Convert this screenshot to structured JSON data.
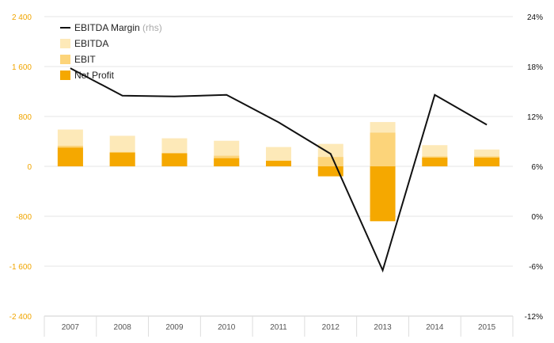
{
  "colors": {
    "ebitda": "#fde9b8",
    "ebit": "#fcd47a",
    "net_profit": "#f5a800",
    "margin_line": "#111111",
    "left_axis_text": "#f0a500",
    "right_axis_text": "#111111",
    "x_axis_text": "#555555",
    "grid": "#e6e6e6",
    "legend_text": "#222222",
    "legend_hint": "#aaaaaa"
  },
  "legend": [
    {
      "key": "margin",
      "label": "EBITDA Margin",
      "hint": "(rhs)",
      "type": "line"
    },
    {
      "key": "ebitda",
      "label": "EBITDA",
      "type": "box"
    },
    {
      "key": "ebit",
      "label": "EBIT",
      "type": "box"
    },
    {
      "key": "net_profit",
      "label": "Net Profit",
      "type": "box"
    }
  ],
  "chart_data": {
    "type": "bar",
    "categories": [
      "2007",
      "2008",
      "2009",
      "2010",
      "2011",
      "2012",
      "2013",
      "2014",
      "2015"
    ],
    "series": [
      {
        "name": "EBITDA",
        "key": "ebitda",
        "values": [
          590,
          490,
          450,
          410,
          310,
          360,
          710,
          340,
          270
        ]
      },
      {
        "name": "EBIT",
        "key": "ebit",
        "values": [
          330,
          230,
          210,
          170,
          80,
          150,
          540,
          160,
          160
        ]
      },
      {
        "name": "Net Profit",
        "key": "net_profit",
        "values": [
          300,
          220,
          210,
          130,
          90,
          -160,
          -880,
          140,
          140
        ]
      },
      {
        "name": "EBITDA Margin",
        "key": "margin",
        "axis": "right",
        "type": "line",
        "unit": "%",
        "values": [
          17.8,
          14.5,
          14.4,
          14.6,
          11.3,
          7.5,
          -6.5,
          14.6,
          11.0
        ]
      }
    ],
    "y_left": {
      "ticks": [
        2400,
        1600,
        800,
        0,
        -800,
        -1600,
        -2400
      ],
      "tick_labels": [
        "2 400",
        "1 600",
        "800",
        "0",
        "-800",
        "-1 600",
        "-2 400"
      ],
      "range": [
        -2400,
        2400
      ]
    },
    "y_right": {
      "ticks": [
        24,
        18,
        12,
        6,
        0,
        -6,
        -12
      ],
      "tick_labels": [
        "24%",
        "18%",
        "12%",
        "6%",
        "0%",
        "-6%",
        "-12%"
      ],
      "range": [
        -12,
        24
      ]
    },
    "grid": true,
    "legend_position": "top-left"
  }
}
